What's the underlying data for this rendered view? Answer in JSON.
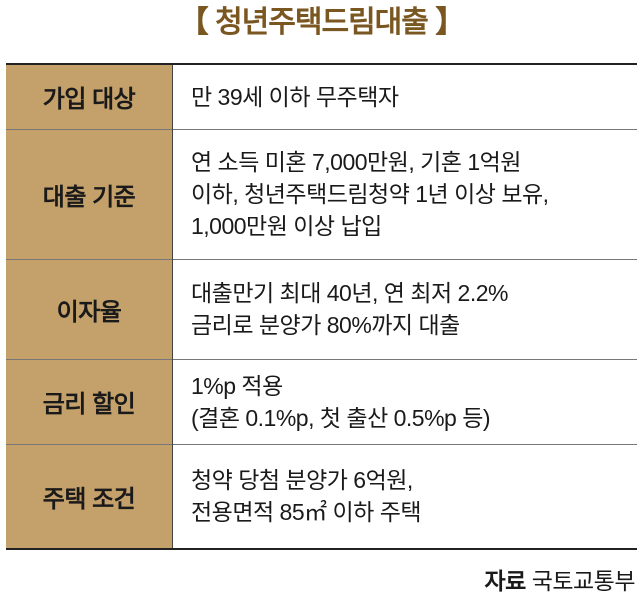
{
  "title": "【 청년주택드림대출 】",
  "rows": [
    {
      "label": "가입 대상",
      "lines": [
        "만 39세 이하 무주택자"
      ]
    },
    {
      "label": "대출 기준",
      "lines": [
        "연 소득 미혼 7,000만원, 기혼 1억원",
        "이하, 청년주택드림청약 1년 이상 보유,",
        "1,000만원 이상 납입"
      ]
    },
    {
      "label": "이자율",
      "lines": [
        "대출만기 최대 40년, 연 최저 2.2%",
        "금리로 분양가 80%까지 대출"
      ]
    },
    {
      "label": "금리 할인",
      "lines": [
        "1%p 적용",
        "(결혼 0.1%p, 첫 출산 0.5%p 등)"
      ]
    },
    {
      "label": "주택 조건",
      "lines": [
        "청약 당첨 분양가 6억원,",
        "전용면적 85㎡ 이하 주택"
      ]
    }
  ],
  "source": {
    "label": "자료",
    "value": "국토교통부"
  },
  "colors": {
    "header_fill": "#c4a06a",
    "title": "#7a5620"
  }
}
